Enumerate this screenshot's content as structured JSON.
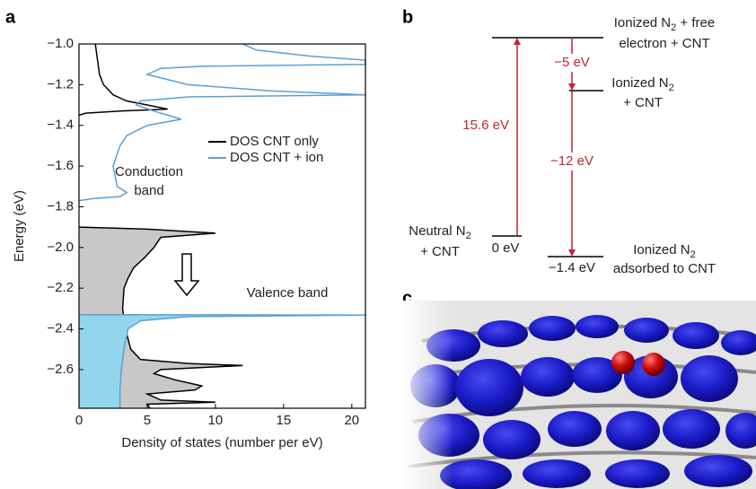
{
  "panels": [
    "a",
    "b",
    "c"
  ],
  "chart_data": {
    "type": "line",
    "orientation": "vertical",
    "xlabel": "Density of states (number per eV)",
    "ylabel": "Energy (eV)",
    "xlim": [
      0,
      21
    ],
    "xticks": [
      0,
      5,
      10,
      15,
      20
    ],
    "ylim": [
      -2.79,
      -1.0
    ],
    "yticks": [
      {
        "value": -1.0,
        "label": "−1.0"
      },
      {
        "value": -1.2,
        "label": "−1.2"
      },
      {
        "value": -1.4,
        "label": "−1.4"
      },
      {
        "value": -1.6,
        "label": "−1.6"
      },
      {
        "value": -1.8,
        "label": "−1.8"
      },
      {
        "value": -2.0,
        "label": "−2.0"
      },
      {
        "value": -2.2,
        "label": "−2.2"
      },
      {
        "value": -2.4,
        "label": "−2.4"
      },
      {
        "value": -2.6,
        "label": "−2.6"
      }
    ],
    "series": [
      {
        "name": "DOS CNT only",
        "color": "#000000",
        "segments": [
          {
            "fill": null,
            "y": [
              -1.0,
              -1.05,
              -1.1,
              -1.15,
              -1.2,
              -1.25,
              -1.28,
              -1.3,
              -1.32,
              -1.33,
              -1.34,
              -1.35
            ],
            "values": [
              1.2,
              1.3,
              1.4,
              1.5,
              1.8,
              2.5,
              3.5,
              5,
              6.5,
              3,
              0.5,
              0
            ]
          },
          {
            "fill": "#c8c8c8",
            "y": [
              -1.9,
              -1.91,
              -1.93,
              -1.95,
              -2.0,
              -2.05,
              -2.1,
              -2.15,
              -2.2,
              -2.3,
              -2.4,
              -2.5,
              -2.55,
              -2.57,
              -2.58,
              -2.6,
              -2.62,
              -2.65,
              -2.68,
              -2.7,
              -2.72,
              -2.75,
              -2.76,
              -2.77,
              -2.79
            ],
            "values": [
              0,
              5,
              10,
              6,
              5.5,
              4.8,
              4,
              3.6,
              3.3,
              3.2,
              3.4,
              3.8,
              4.5,
              8,
              12,
              6,
              5.5,
              7,
              9,
              8.5,
              5,
              6,
              10,
              5,
              5.2
            ]
          }
        ]
      },
      {
        "name": "DOS CNT + ion",
        "color": "#5b9fd6",
        "segments": [
          {
            "fill": null,
            "y": [
              -1.0,
              -1.03,
              -1.06,
              -1.08,
              -1.1,
              -1.11,
              -1.12,
              -1.15,
              -1.2,
              -1.23,
              -1.25,
              -1.26,
              -1.28,
              -1.3,
              -1.33,
              -1.37,
              -1.4,
              -1.45,
              -1.5,
              -1.6,
              -1.7,
              -1.73,
              -1.75,
              -1.76,
              -1.77
            ],
            "values": [
              12,
              13,
              17,
              21,
              21,
              9,
              6,
              5,
              8,
              14,
              21,
              8,
              4.5,
              4.2,
              5.5,
              7.5,
              5,
              3.5,
              3,
              2.5,
              2.8,
              3.5,
              3,
              1,
              0
            ]
          },
          {
            "fill": "#93d5ea",
            "y": [
              -2.33,
              -2.332,
              -2.34,
              -2.36,
              -2.4,
              -2.5,
              -2.6,
              -2.7,
              -2.79
            ],
            "values": [
              0,
              21,
              8,
              4.5,
              3.6,
              3.3,
              3.1,
              3,
              3
            ]
          }
        ]
      }
    ],
    "annotations": [
      {
        "lines": [
          "Conduction",
          "band"
        ]
      },
      {
        "lines": [
          "Valence band"
        ]
      }
    ]
  },
  "energy_diagram": {
    "levels": [
      {
        "label": [
          {
            "text": "Ionized N",
            "sub": "2",
            "tail": " + free"
          },
          {
            "text": "electron + CNT"
          }
        ]
      },
      {
        "label": [
          {
            "text": "Ionized N",
            "sub": "2"
          },
          {
            "text": "+ CNT"
          }
        ]
      },
      {
        "label": [
          {
            "text": "Neutral N",
            "sub": "2"
          },
          {
            "text": "+ CNT"
          }
        ],
        "energy": "0 eV"
      },
      {
        "label": [
          {
            "text": "Ionized N",
            "sub": "2"
          },
          {
            "text": "adsorbed to CNT"
          }
        ],
        "energy": "−1.4 eV"
      }
    ],
    "arrows": [
      {
        "label": "15.6 eV"
      },
      {
        "label": "−5 eV"
      },
      {
        "label": "−12 eV"
      }
    ]
  }
}
